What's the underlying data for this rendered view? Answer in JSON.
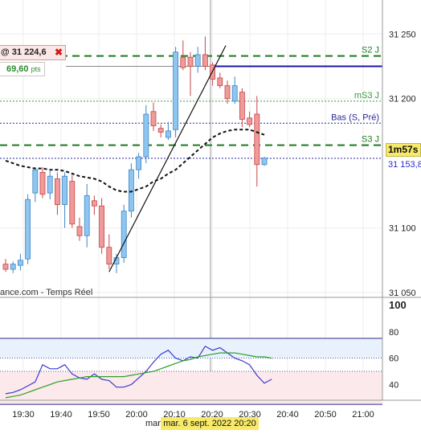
{
  "chart_data": [
    {
      "type": "candlestick",
      "source_label": "ance.com - Temps Réel",
      "y_ticks": [
        31050,
        31100,
        31200,
        31250
      ],
      "ylim": [
        31050,
        31257
      ],
      "x_ticks": [
        "19:30",
        "19:40",
        "19:50",
        "20:00",
        "20:10",
        "20:20",
        "20:30",
        "20:40",
        "20:50",
        "21:00"
      ],
      "candles": [
        {
          "o": 31072,
          "h": 31076,
          "l": 31066,
          "c": 31068
        },
        {
          "o": 31068,
          "h": 31074,
          "l": 31065,
          "c": 31072
        },
        {
          "o": 31071,
          "h": 31080,
          "l": 31067,
          "c": 31075
        },
        {
          "o": 31076,
          "h": 31126,
          "l": 31072,
          "c": 31122
        },
        {
          "o": 31127,
          "h": 31147,
          "l": 31120,
          "c": 31145
        },
        {
          "o": 31143,
          "h": 31147,
          "l": 31123,
          "c": 31126
        },
        {
          "o": 31127,
          "h": 31144,
          "l": 31122,
          "c": 31140
        },
        {
          "o": 31138,
          "h": 31143,
          "l": 31110,
          "c": 31118
        },
        {
          "o": 31118,
          "h": 31143,
          "l": 31100,
          "c": 31140
        },
        {
          "o": 31136,
          "h": 31141,
          "l": 31100,
          "c": 31103
        },
        {
          "o": 31101,
          "h": 31108,
          "l": 31090,
          "c": 31094
        },
        {
          "o": 31094,
          "h": 31134,
          "l": 31085,
          "c": 31125
        },
        {
          "o": 31121,
          "h": 31125,
          "l": 31110,
          "c": 31117
        },
        {
          "o": 31117,
          "h": 31123,
          "l": 31080,
          "c": 31085
        },
        {
          "o": 31085,
          "h": 31095,
          "l": 31068,
          "c": 31072
        },
        {
          "o": 31072,
          "h": 31080,
          "l": 31065,
          "c": 31077
        },
        {
          "o": 31077,
          "h": 31118,
          "l": 31073,
          "c": 31113
        },
        {
          "o": 31113,
          "h": 31150,
          "l": 31108,
          "c": 31145
        },
        {
          "o": 31145,
          "h": 31158,
          "l": 31138,
          "c": 31155
        },
        {
          "o": 31155,
          "h": 31195,
          "l": 31150,
          "c": 31188
        },
        {
          "o": 31190,
          "h": 31197,
          "l": 31175,
          "c": 31179
        },
        {
          "o": 31177,
          "h": 31180,
          "l": 31170,
          "c": 31174
        },
        {
          "o": 31170,
          "h": 31182,
          "l": 31168,
          "c": 31175
        },
        {
          "o": 31176,
          "h": 31240,
          "l": 31170,
          "c": 31236
        },
        {
          "o": 31232,
          "h": 31245,
          "l": 31222,
          "c": 31224
        },
        {
          "o": 31232,
          "h": 31236,
          "l": 31202,
          "c": 31225
        },
        {
          "o": 31225,
          "h": 31240,
          "l": 31220,
          "c": 31234
        },
        {
          "o": 31234,
          "h": 31248,
          "l": 31222,
          "c": 31225
        },
        {
          "o": 31226,
          "h": 31228,
          "l": 31210,
          "c": 31215
        },
        {
          "o": 31216,
          "h": 31220,
          "l": 31208,
          "c": 31210
        },
        {
          "o": 31210,
          "h": 31214,
          "l": 31196,
          "c": 31200
        },
        {
          "o": 31198,
          "h": 31217,
          "l": 31196,
          "c": 31210
        },
        {
          "o": 31205,
          "h": 31208,
          "l": 31178,
          "c": 31184
        },
        {
          "o": 31185,
          "h": 31190,
          "l": 31178,
          "c": 31180
        },
        {
          "o": 31188,
          "h": 31202,
          "l": 31132,
          "c": 31149
        },
        {
          "o": 31149,
          "h": 31155,
          "l": 31148,
          "c": 31154
        }
      ],
      "moving_average": [
        31152,
        31150,
        31148,
        31147,
        31146,
        31146,
        31145,
        31145,
        31144,
        31142,
        31140,
        31139,
        31138,
        31136,
        31132,
        31129,
        31128,
        31128,
        31130,
        31132,
        31136,
        31138,
        31142,
        31145,
        31150,
        31155,
        31160,
        31165,
        31170,
        31173,
        31175,
        31176,
        31176,
        31176,
        31174,
        31172
      ],
      "horizontal_levels": [
        {
          "label": "S2 J",
          "value": 31233,
          "style": "dashed",
          "color": "#1e7a1e"
        },
        {
          "label": "",
          "value": 31225,
          "style": "solid",
          "color": "#1a1aa8"
        },
        {
          "label": "mS3 J",
          "value": 31198,
          "style": "dotted",
          "color": "#3c963c"
        },
        {
          "label": "Bas (S, Pré)",
          "value": 31181,
          "style": "dotted",
          "color": "#2a2a9a"
        },
        {
          "label": "S3 J",
          "value": 31164,
          "style": "dashed",
          "color": "#1e7a1e"
        },
        {
          "label": "",
          "value": 31153.8,
          "style": "dotted",
          "color": "#2a2a9a"
        }
      ]
    },
    {
      "type": "line",
      "y_ticks": [
        40,
        60,
        80,
        100
      ],
      "ylim": [
        22,
        100
      ],
      "overbought": 75,
      "oversold": 25,
      "upper_level": 60,
      "lower_level": 50,
      "series": [
        {
          "values": [
            33,
            34,
            36,
            39,
            42,
            55,
            52,
            52,
            55,
            48,
            45,
            44,
            48,
            44,
            43,
            38,
            38,
            40,
            45,
            50,
            57,
            63,
            66,
            60,
            58,
            61,
            60,
            69,
            66,
            68,
            64,
            60,
            58,
            55,
            47,
            41,
            44
          ],
          "color": "#3a3ad0"
        },
        {
          "values": [
            30,
            31,
            32,
            34,
            36,
            38,
            40,
            42,
            43,
            44,
            45,
            46,
            46,
            46,
            46,
            46,
            46,
            47,
            48,
            49,
            50,
            52,
            54,
            56,
            58,
            59,
            61,
            62,
            63,
            64,
            64,
            64,
            63,
            62,
            61,
            61,
            60
          ],
          "color": "#2ca02c"
        }
      ]
    }
  ],
  "order": {
    "price": "@ 31 224,6",
    "close": "✖"
  },
  "gain": {
    "value": "69,60",
    "unit": "pts"
  },
  "timer": "1m57s",
  "current_price": "31 153,8",
  "cursor_date": {
    "prefix": "mar.",
    "value": "mar. 6 sept. 2022 20:20"
  },
  "colors": {
    "up": "#8ec6f0",
    "down": "#f09a9a",
    "up_border": "#3f86c4",
    "down_border": "#c4474a",
    "ma": "#111111"
  }
}
